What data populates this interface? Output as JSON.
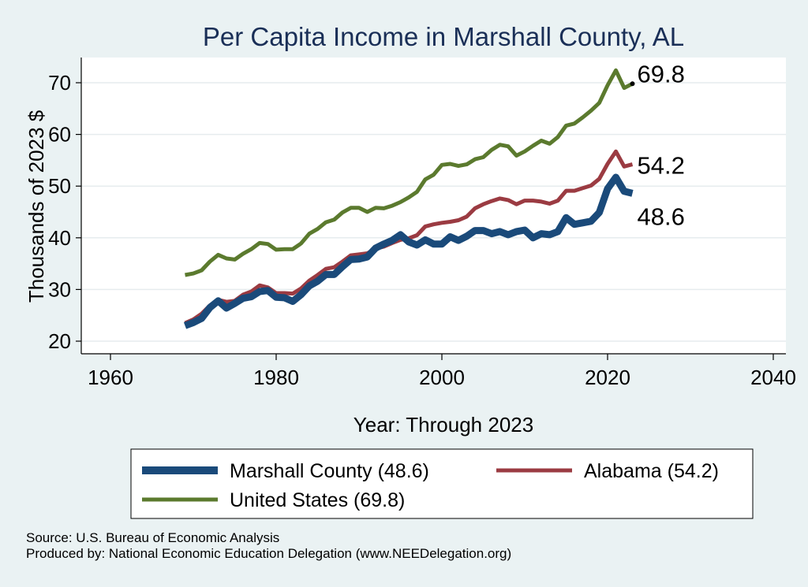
{
  "chart_data": {
    "type": "line",
    "title": "Per Capita Income in Marshall County, AL",
    "xlabel": "Year: Through 2023",
    "ylabel": "Thousands of 2023 $",
    "xlim": [
      1960,
      2040
    ],
    "ylim": [
      20,
      75
    ],
    "xticks": [
      1960,
      1980,
      2000,
      2020,
      2040
    ],
    "yticks": [
      20,
      30,
      40,
      50,
      60,
      70
    ],
    "grid": true,
    "legend_position": "bottom",
    "x": [
      1969,
      1970,
      1971,
      1972,
      1973,
      1974,
      1975,
      1976,
      1977,
      1978,
      1979,
      1980,
      1981,
      1982,
      1983,
      1984,
      1985,
      1986,
      1987,
      1988,
      1989,
      1990,
      1991,
      1992,
      1993,
      1994,
      1995,
      1996,
      1997,
      1998,
      1999,
      2000,
      2001,
      2002,
      2003,
      2004,
      2005,
      2006,
      2007,
      2008,
      2009,
      2010,
      2011,
      2012,
      2013,
      2014,
      2015,
      2016,
      2017,
      2018,
      2019,
      2020,
      2021,
      2022,
      2023
    ],
    "series": [
      {
        "name": "Marshall County (48.6)",
        "color": "#1a4a7a",
        "values": [
          23.0,
          23.6,
          24.4,
          26.5,
          27.8,
          26.4,
          27.3,
          28.3,
          28.6,
          29.6,
          29.8,
          28.5,
          28.4,
          27.7,
          29.0,
          30.7,
          31.6,
          32.9,
          32.9,
          34.4,
          35.8,
          35.9,
          36.3,
          38.0,
          38.8,
          39.5,
          40.6,
          39.2,
          38.6,
          39.6,
          38.8,
          38.8,
          40.2,
          39.5,
          40.3,
          41.4,
          41.4,
          40.8,
          41.2,
          40.6,
          41.2,
          41.5,
          40.0,
          40.8,
          40.6,
          41.2,
          43.9,
          42.6,
          42.9,
          43.2,
          44.9,
          49.5,
          51.7,
          49.0,
          48.6
        ]
      },
      {
        "name": "Alabama (54.2)",
        "color": "#9b3b42",
        "values": [
          23.5,
          24.2,
          25.3,
          26.9,
          28.0,
          27.6,
          27.8,
          29.0,
          29.6,
          30.8,
          30.4,
          29.3,
          29.3,
          29.2,
          30.2,
          31.7,
          32.8,
          34.0,
          34.3,
          35.4,
          36.6,
          36.8,
          37.0,
          37.9,
          38.3,
          39.0,
          39.6,
          39.9,
          40.5,
          42.2,
          42.6,
          42.9,
          43.1,
          43.4,
          44.1,
          45.7,
          46.5,
          47.1,
          47.6,
          47.3,
          46.5,
          47.2,
          47.2,
          47.0,
          46.6,
          47.2,
          49.1,
          49.1,
          49.6,
          50.1,
          51.4,
          54.3,
          56.7,
          53.8,
          54.2
        ]
      },
      {
        "name": "United States (69.8)",
        "color": "#5b7a2e",
        "values": [
          32.8,
          33.1,
          33.7,
          35.4,
          36.7,
          36.0,
          35.8,
          36.9,
          37.8,
          39.0,
          38.8,
          37.7,
          37.8,
          37.8,
          38.9,
          40.8,
          41.7,
          43.0,
          43.5,
          44.9,
          45.8,
          45.8,
          45.0,
          45.8,
          45.7,
          46.2,
          46.9,
          47.8,
          48.9,
          51.3,
          52.2,
          54.1,
          54.3,
          53.9,
          54.2,
          55.2,
          55.6,
          57.0,
          58.0,
          57.7,
          55.9,
          56.7,
          57.8,
          58.8,
          58.2,
          59.5,
          61.7,
          62.1,
          63.3,
          64.6,
          66.1,
          69.5,
          72.4,
          69.0,
          69.8
        ]
      }
    ],
    "end_labels": [
      "48.6",
      "54.2",
      "69.8"
    ],
    "source_lines": [
      "Source: U.S. Bureau of Economic Analysis",
      "Produced by: National Economic Education Delegation (www.NEEDelegation.org)"
    ]
  }
}
